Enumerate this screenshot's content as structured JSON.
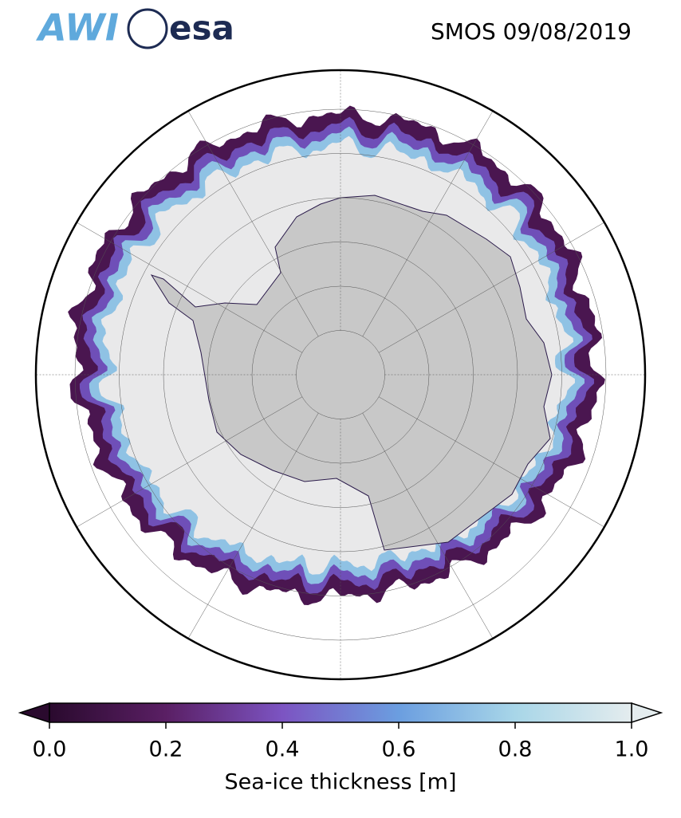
{
  "header": {
    "logos": [
      "AWI",
      "esa"
    ],
    "title": "SMOS 09/08/2019"
  },
  "colorbar": {
    "label": "Sea-ice thickness [m]",
    "range": [
      0,
      1
    ],
    "colors": [
      "#2a0a2e",
      "#5a1f64",
      "#7c54c2",
      "#6b9ee0",
      "#a8d6e8",
      "#e4ecee"
    ],
    "ticks": [
      {
        "value": 0,
        "label": "0.0"
      },
      0.2,
      0.4,
      0.6,
      0.8,
      {
        "value": 1,
        "label": "1.0"
      }
    ]
  }
}
